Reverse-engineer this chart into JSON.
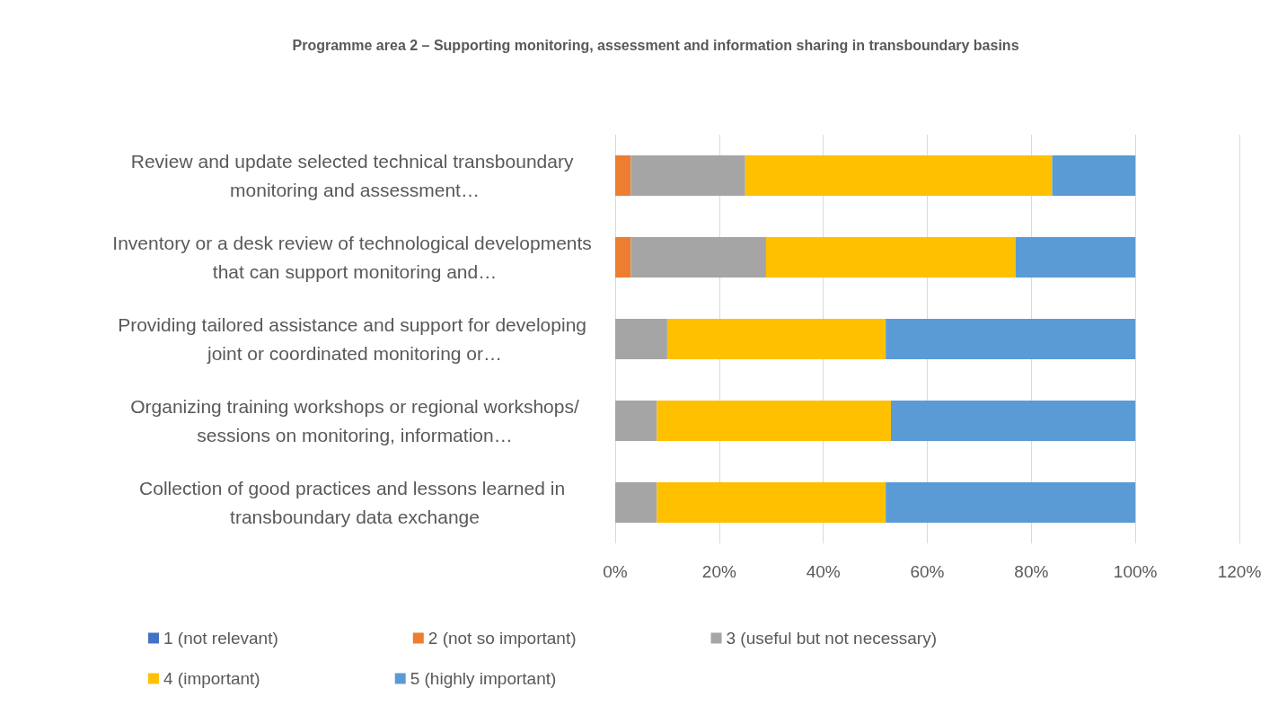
{
  "chart_data": {
    "type": "bar",
    "orientation": "horizontal",
    "stacked": true,
    "title": "Programme area 2 – Supporting monitoring, assessment and information sharing in transboundary basins",
    "categories": [
      "Review and update selected technical transboundary monitoring and assessment…",
      "Inventory or a desk review of technological developments that can support monitoring and…",
      "Providing tailored assistance and support for developing joint or coordinated monitoring or…",
      "Organizing training workshops or regional workshops/sessions on monitoring, information…",
      "Collection of good practices and lessons learned in transboundary data exchange"
    ],
    "series": [
      {
        "name": "1 (not relevant)",
        "color": "#4472c4",
        "values": [
          0,
          0,
          0,
          0,
          0
        ]
      },
      {
        "name": "2 (not so important)",
        "color": "#ed7d31",
        "values": [
          3,
          3,
          0,
          0,
          0
        ]
      },
      {
        "name": "3 (useful but not necessary)",
        "color": "#a5a5a5",
        "values": [
          22,
          26,
          10,
          8,
          8
        ]
      },
      {
        "name": "4 (important)",
        "color": "#ffc000",
        "values": [
          59,
          48,
          42,
          45,
          44
        ]
      },
      {
        "name": "5 (highly important)",
        "color": "#5b9bd5",
        "values": [
          16,
          23,
          48,
          47,
          48
        ]
      }
    ],
    "xlim": [
      0,
      120
    ],
    "xticks": [
      {
        "value": 0,
        "label": "0%"
      },
      {
        "value": 20,
        "label": "20%"
      },
      {
        "value": 40,
        "label": "40%"
      },
      {
        "value": 60,
        "label": "60%"
      },
      {
        "value": 80,
        "label": "80%"
      },
      {
        "value": 100,
        "label": "100%"
      },
      {
        "value": 120,
        "label": "120%"
      }
    ],
    "grid": "x",
    "legend": "bottom"
  }
}
